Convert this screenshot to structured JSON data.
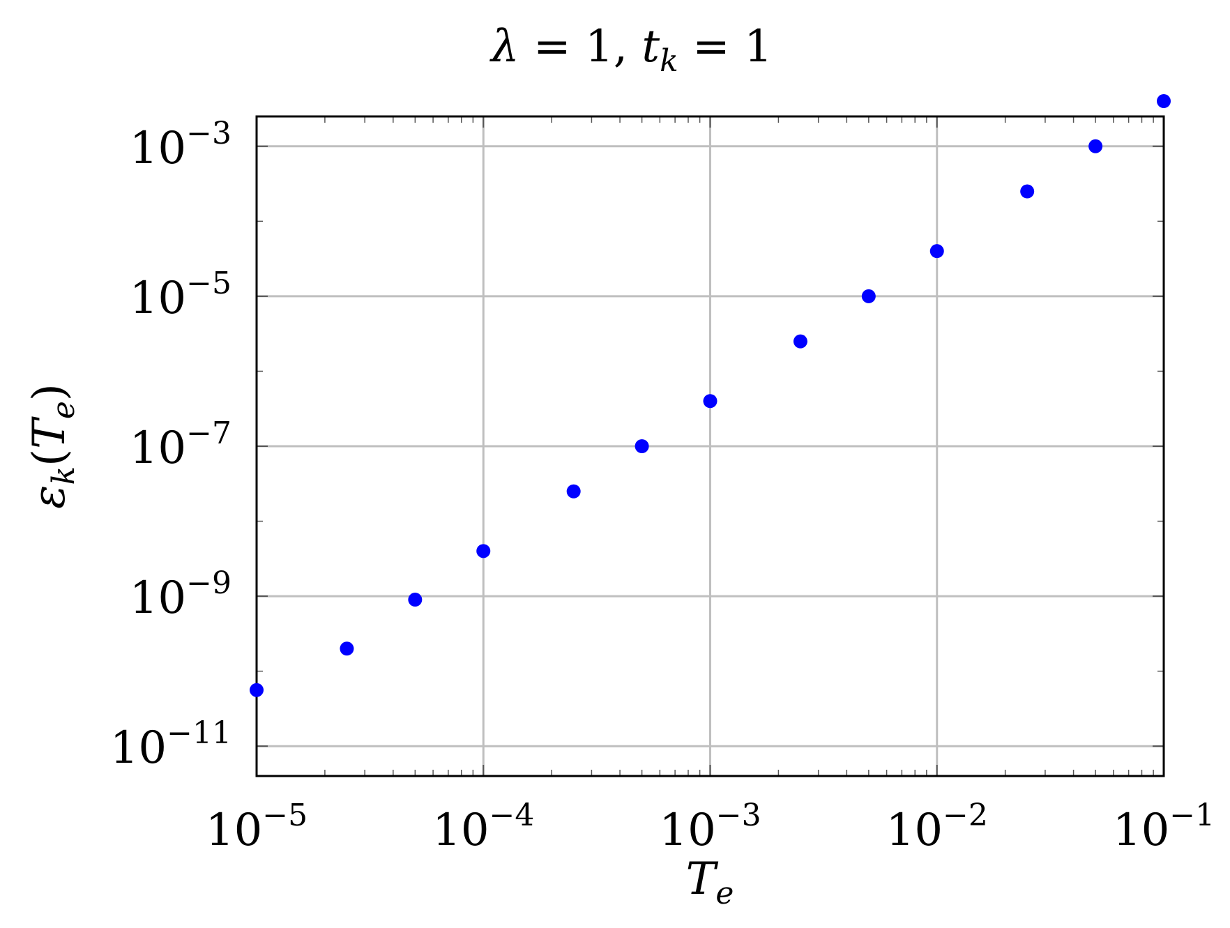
{
  "chart_data": {
    "type": "scatter",
    "title": {
      "symbol": "λ",
      "eq1": " = 1, ",
      "t": "t",
      "t_sub": "k",
      "eq2": " = 1"
    },
    "xlabel": {
      "base": "T",
      "sub": "e"
    },
    "ylabel": {
      "base": "ε",
      "sub": "k",
      "open": "(",
      "arg": "T",
      "arg_sub": "e",
      "close": ")"
    },
    "x_scale": "log",
    "y_scale": "log",
    "xlim": [
      1e-05,
      0.1
    ],
    "ylim": [
      4e-12,
      0.0025
    ],
    "grid": true,
    "marker_color": "#0000ff",
    "x_ticks": [
      {
        "value": 1e-05,
        "base": "10",
        "exp": "−5"
      },
      {
        "value": 0.0001,
        "base": "10",
        "exp": "−4"
      },
      {
        "value": 0.001,
        "base": "10",
        "exp": "−3"
      },
      {
        "value": 0.01,
        "base": "10",
        "exp": "−2"
      },
      {
        "value": 0.1,
        "base": "10",
        "exp": "−1"
      }
    ],
    "y_ticks": [
      {
        "value": 1e-11,
        "base": "10",
        "exp": "−11"
      },
      {
        "value": 1e-09,
        "base": "10",
        "exp": "−9"
      },
      {
        "value": 1e-07,
        "base": "10",
        "exp": "−7"
      },
      {
        "value": 1e-05,
        "base": "10",
        "exp": "−5"
      },
      {
        "value": 0.001,
        "base": "10",
        "exp": "−3"
      }
    ],
    "series": [
      {
        "x": [
          1e-05,
          2.5e-05,
          5e-05,
          0.0001,
          0.00025,
          0.0005,
          0.001,
          0.0025,
          0.005,
          0.01,
          0.025,
          0.05,
          0.1
        ],
        "y": [
          5.6e-11,
          2e-10,
          9e-10,
          4e-09,
          2.5e-08,
          1e-07,
          4e-07,
          2.5e-06,
          1e-05,
          4e-05,
          0.00025,
          0.001,
          0.004
        ]
      }
    ]
  }
}
